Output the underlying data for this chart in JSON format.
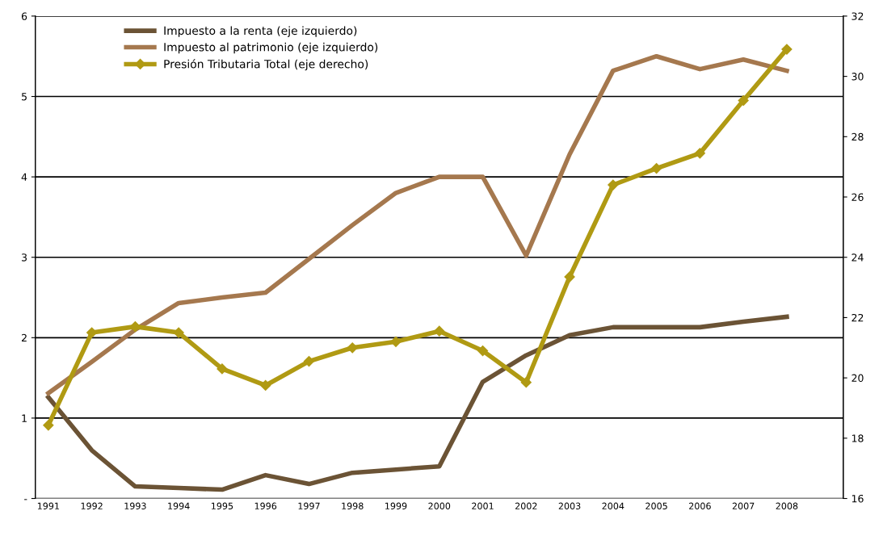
{
  "chart_data": {
    "type": "line",
    "x": [
      1991,
      1992,
      1993,
      1994,
      1995,
      1996,
      1997,
      1998,
      1999,
      2000,
      2001,
      2002,
      2003,
      2004,
      2005,
      2006,
      2007,
      2008
    ],
    "series": [
      {
        "name": "Impuesto a la renta (eje izquierdo)",
        "color": "#6b5335",
        "marker": "none",
        "values": [
          1.26,
          0.6,
          0.15,
          0.13,
          0.11,
          0.29,
          0.18,
          0.32,
          0.36,
          0.4,
          1.45,
          1.78,
          2.03,
          2.13,
          2.13,
          2.13,
          2.2,
          2.26
        ]
      },
      {
        "name": "Impuesto al patrimonio (eje izquierdo)",
        "color": "#a5784e",
        "marker": "none",
        "values": [
          1.31,
          1.7,
          2.1,
          2.43,
          2.5,
          2.56,
          2.98,
          3.4,
          3.8,
          4.0,
          4.0,
          3.02,
          4.28,
          5.32,
          5.5,
          5.34,
          5.46,
          5.32
        ]
      },
      {
        "name": "Presión Tributaria Total (eje derecho)",
        "color": "#b09a13",
        "marker": "diamond",
        "axis": "y2",
        "values": [
          18.43,
          21.5,
          21.7,
          21.5,
          20.3,
          19.75,
          20.55,
          21.0,
          21.2,
          21.55,
          20.9,
          19.85,
          23.35,
          26.4,
          26.95,
          27.45,
          29.2,
          30.9
        ]
      }
    ],
    "xlim": [
      1990.7,
      2009.3
    ],
    "xticks": [
      1991,
      1992,
      1993,
      1994,
      1995,
      1996,
      1997,
      1998,
      1999,
      2000,
      2001,
      2002,
      2003,
      2004,
      2005,
      2006,
      2007,
      2008
    ],
    "ylim": [
      0,
      6
    ],
    "yticks": [
      {
        "value": 0,
        "label": "-"
      },
      1,
      2,
      3,
      4,
      5,
      6
    ],
    "y2lim": [
      16,
      32
    ],
    "y2ticks": [
      16,
      18,
      20,
      22,
      24,
      26,
      28,
      30,
      32
    ],
    "grid": "y",
    "legend": "top left"
  }
}
